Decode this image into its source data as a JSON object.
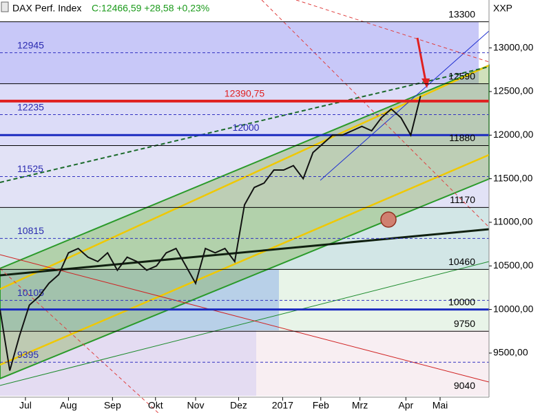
{
  "chart_data": {
    "type": "line",
    "title": "DAX Perf. Index",
    "quote": "C:12466,59 +28,58 +0,23%",
    "axis_label": "XXP",
    "xlim": [
      0,
      50
    ],
    "xticks": [
      {
        "value": 2.6,
        "label": "Jul"
      },
      {
        "value": 7,
        "label": "Aug"
      },
      {
        "value": 11.5,
        "label": "Sep"
      },
      {
        "value": 15.9,
        "label": "Okt"
      },
      {
        "value": 20,
        "label": "Nov"
      },
      {
        "value": 24.4,
        "label": "Dez"
      },
      {
        "value": 28.9,
        "label": "2017"
      },
      {
        "value": 32.8,
        "label": "Feb"
      },
      {
        "value": 36.8,
        "label": "Mrz"
      },
      {
        "value": 41.5,
        "label": "Apr"
      },
      {
        "value": 45,
        "label": "Mai"
      }
    ],
    "ylim": [
      9010,
      13550
    ],
    "yticks": [
      {
        "value": 9500,
        "label": "9500,00"
      },
      {
        "value": 10000,
        "label": "10000,00"
      },
      {
        "value": 10500,
        "label": "10500,00"
      },
      {
        "value": 11000,
        "label": "11000,00"
      },
      {
        "value": 11500,
        "label": "11500,00"
      },
      {
        "value": 12000,
        "label": "12000,00"
      },
      {
        "value": 12500,
        "label": "12500,00"
      },
      {
        "value": 13000,
        "label": "13000,00"
      }
    ],
    "series": [
      {
        "name": "DAX Perf. Index",
        "color": "#111111",
        "x": [
          0,
          1,
          2,
          3,
          4,
          5,
          6,
          7,
          8,
          9,
          10,
          11,
          12,
          13,
          14,
          15,
          16,
          17,
          18,
          19,
          20,
          21,
          22,
          23,
          24,
          25,
          26,
          27,
          28,
          29,
          30,
          31,
          32,
          33,
          34,
          35,
          36,
          37,
          38,
          39,
          40,
          41,
          42,
          43
        ],
        "values": [
          10000,
          9300,
          9700,
          10050,
          10150,
          10300,
          10400,
          10650,
          10700,
          10600,
          10550,
          10650,
          10450,
          10600,
          10550,
          10450,
          10500,
          10650,
          10700,
          10500,
          10300,
          10700,
          10650,
          10700,
          10550,
          11200,
          11400,
          11450,
          11600,
          11600,
          11650,
          11500,
          11800,
          11900,
          12000,
          12000,
          12050,
          12100,
          12050,
          12200,
          12300,
          12200,
          12000,
          12450
        ]
      }
    ],
    "levels": [
      {
        "value": 13300,
        "color": "#000000",
        "width": 1
      },
      {
        "value": 12945,
        "color": "#3030c0",
        "width": 1,
        "dash": true
      },
      {
        "value": 12590,
        "color": "#000000",
        "width": 1
      },
      {
        "value": 12390.75,
        "label": "12390,75",
        "color": "#e02020",
        "width": 4
      },
      {
        "value": 12235,
        "color": "#3030c0",
        "width": 1,
        "dash": true
      },
      {
        "value": 12000,
        "color": "#1a2ac0",
        "width": 3
      },
      {
        "value": 11880,
        "color": "#000000",
        "width": 1
      },
      {
        "value": 11525,
        "color": "#3030c0",
        "width": 1,
        "dash": true
      },
      {
        "value": 11170,
        "color": "#000000",
        "width": 1
      },
      {
        "value": 10815,
        "color": "#3030c0",
        "width": 1,
        "dash": true
      },
      {
        "value": 10460,
        "color": "#000000",
        "width": 1
      },
      {
        "value": 10105,
        "color": "#3030c0",
        "width": 1,
        "dash": true
      },
      {
        "value": 10000,
        "color": "#1a2ac0",
        "width": 3
      },
      {
        "value": 9750,
        "color": "#000000",
        "width": 1
      },
      {
        "value": 9395,
        "color": "#3030c0",
        "width": 1,
        "dash": true
      },
      {
        "value": 9040,
        "color": "#000000",
        "width": 0
      }
    ]
  }
}
